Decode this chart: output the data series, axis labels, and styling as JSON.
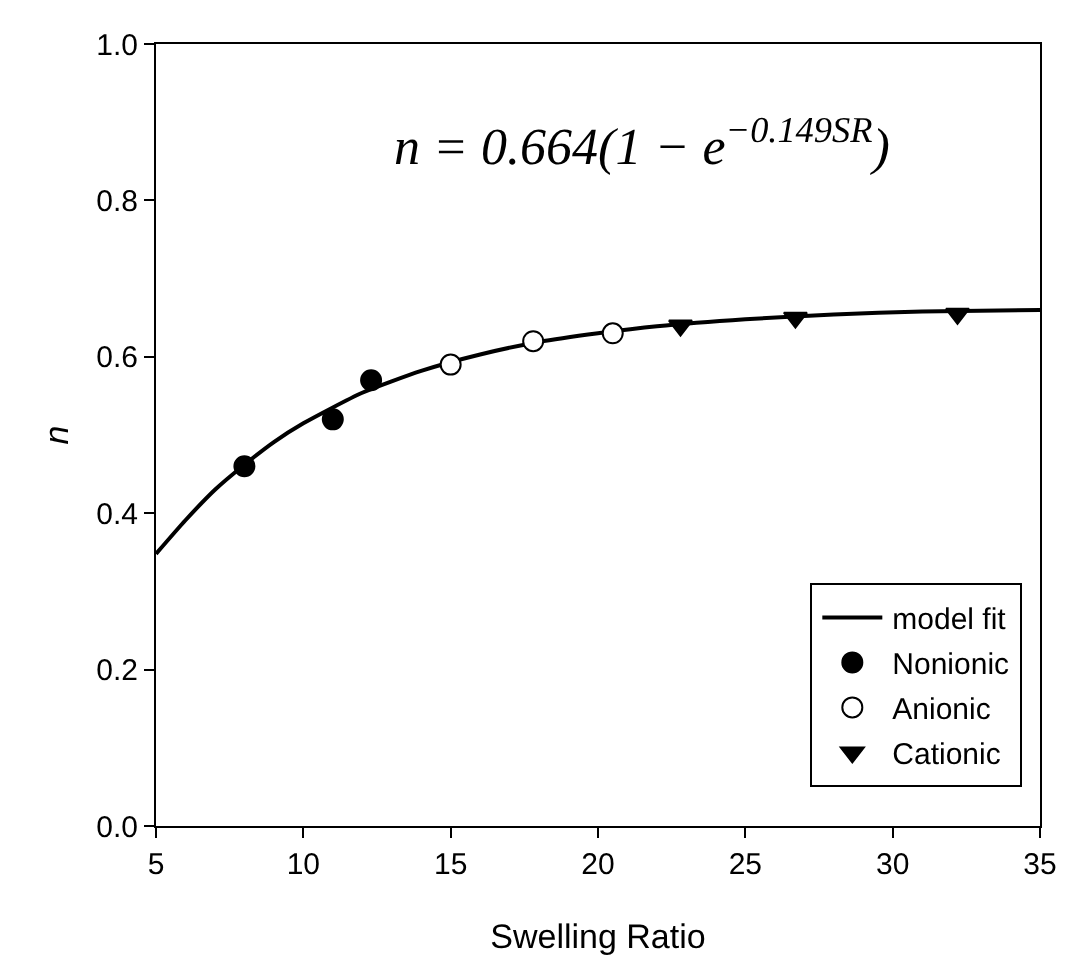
{
  "chart_data": {
    "type": "scatter",
    "xlabel": "Swelling Ratio",
    "ylabel": "n",
    "xlim": [
      5,
      35
    ],
    "xticks": [
      5,
      10,
      15,
      20,
      25,
      30,
      35
    ],
    "ylim": [
      0,
      1
    ],
    "yticks": [
      {
        "value": 0,
        "label": "0.0"
      },
      0.2,
      0.4,
      0.6,
      0.8,
      {
        "value": 1,
        "label": "1.0"
      }
    ],
    "grid": false,
    "legend": "bottom right",
    "annotations": [
      "n = 0.664(1 − e$^{−0.149SR}$)"
    ],
    "series": [
      {
        "name": "model fit",
        "type": "line",
        "color": "#000000",
        "marker": "none",
        "line_style": "solid",
        "x": [
          5,
          6,
          7,
          8,
          9,
          10,
          12,
          14,
          16,
          18,
          20,
          22,
          25,
          28,
          31,
          35
        ],
        "values": [
          0.348,
          0.391,
          0.43,
          0.462,
          0.491,
          0.515,
          0.554,
          0.582,
          0.603,
          0.619,
          0.63,
          0.639,
          0.648,
          0.654,
          0.658,
          0.66
        ]
      },
      {
        "name": "Nonionic",
        "color": "#000000",
        "marker": "circle",
        "x": [
          8,
          11,
          12.3
        ],
        "values": [
          0.46,
          0.52,
          0.57
        ]
      },
      {
        "name": "Anionic",
        "color": "#ffffff",
        "marker": "circle",
        "x": [
          15,
          17.8,
          20.5
        ],
        "values": [
          0.59,
          0.62,
          0.63
        ]
      },
      {
        "name": "Cationic",
        "color": "#000000",
        "marker": "triangle",
        "x": [
          22.8,
          26.7,
          32.2
        ],
        "values": [
          0.64,
          0.65,
          0.655
        ]
      }
    ]
  }
}
